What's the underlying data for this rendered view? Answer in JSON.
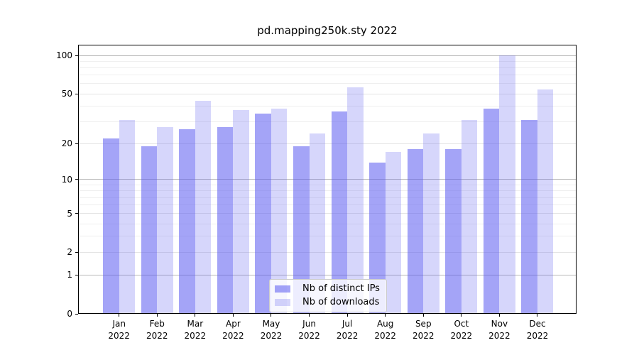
{
  "title": "pd.mapping250k.sty 2022",
  "colors": {
    "bar_base": "#5a5af0",
    "ips_alpha": 0.55,
    "downloads_alpha": 0.25,
    "grid_major": "#b9b9b9",
    "grid_labeled_minor": "#e4e4e4",
    "grid_minor": "#efefef",
    "axis": "#000000"
  },
  "y_axis": {
    "tick_labels": [
      "100",
      "50",
      "20",
      "10",
      "5",
      "2",
      "1",
      "0"
    ]
  },
  "x_axis": {
    "months": [
      "Jan",
      "Feb",
      "Mar",
      "Apr",
      "May",
      "Jun",
      "Jul",
      "Aug",
      "Sep",
      "Oct",
      "Nov",
      "Dec"
    ],
    "year": "2022"
  },
  "chart_data": {
    "type": "bar",
    "title": "pd.mapping250k.sty 2022",
    "yscale": "log10(value+1)",
    "ylim": [
      0,
      120
    ],
    "yticks": [
      0,
      1,
      2,
      5,
      10,
      20,
      50,
      100
    ],
    "grid": true,
    "legend_position": "lower center",
    "categories": [
      "Jan 2022",
      "Feb 2022",
      "Mar 2022",
      "Apr 2022",
      "May 2022",
      "Jun 2022",
      "Jul 2022",
      "Aug 2022",
      "Sep 2022",
      "Oct 2022",
      "Nov 2022",
      "Dec 2022"
    ],
    "series": [
      {
        "name": "Nb of distinct IPs",
        "key": "ips",
        "values": [
          22,
          19,
          26,
          27,
          35,
          19,
          36,
          14,
          18,
          18,
          38,
          31
        ]
      },
      {
        "name": "Nb of downloads",
        "key": "downloads",
        "values": [
          31,
          27,
          44,
          37,
          38,
          24,
          56,
          17,
          24,
          31,
          100,
          54
        ]
      }
    ]
  }
}
